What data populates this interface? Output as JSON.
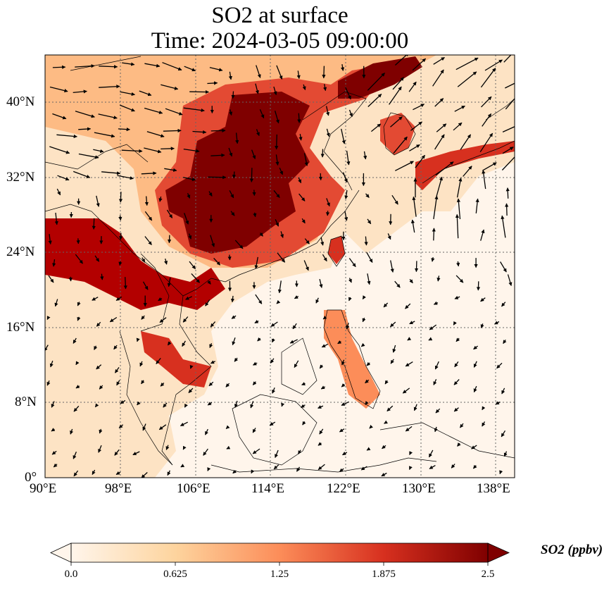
{
  "title_line1": "SO2 at surface",
  "title_line2": "Time: 2024-03-05 09:00:00",
  "lon_ticks": [
    "90°E",
    "98°E",
    "106°E",
    "114°E",
    "122°E",
    "130°E",
    "138°E"
  ],
  "lat_ticks": [
    "40°N",
    "32°N",
    "24°N",
    "16°N",
    "8°N",
    "0°"
  ],
  "colorbar": {
    "label": "SO2 (ppbv)",
    "ticks": [
      "0.0",
      "0.625",
      "1.25",
      "1.875",
      "2.5"
    ],
    "colors": [
      "#fff5eb",
      "#fdd49e",
      "#fc8d59",
      "#d7301f",
      "#7f0000"
    ]
  },
  "map_extent": {
    "lon": [
      90,
      140
    ],
    "lat": [
      0,
      45
    ]
  },
  "map_colors": {
    "background": "#fff5eb",
    "coast": "#000000",
    "grid": "#666666",
    "arrow": "#000000"
  }
}
